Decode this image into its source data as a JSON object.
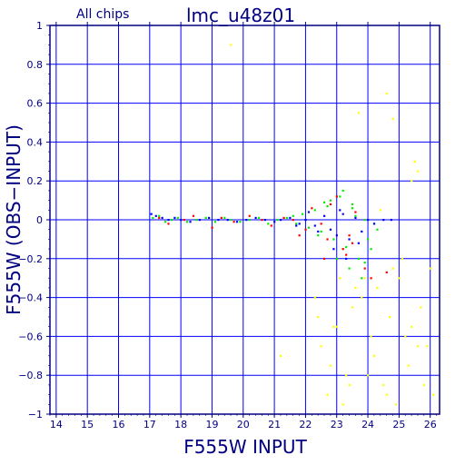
{
  "chart_data": {
    "type": "scatter",
    "title": "lmc_u48z01",
    "subtitle": "All chips",
    "xlabel": "F555W INPUT",
    "ylabel": "F555W (OBS−INPUT)",
    "xlim": [
      13.8,
      26.3
    ],
    "ylim": [
      -1,
      1
    ],
    "xticks": [
      "14",
      "15",
      "16",
      "17",
      "18",
      "19",
      "20",
      "21",
      "22",
      "23",
      "24",
      "25",
      "26"
    ],
    "yticks": [
      "1",
      "0.8",
      "0.6",
      "0.4",
      "0.2",
      "0",
      "−0.2",
      "−0.4",
      "−0.6",
      "−0.8",
      "−1"
    ],
    "grid": true,
    "colors": {
      "axes": "#000080",
      "grid": "#0000ff",
      "series": [
        "#0000ff",
        "#ff0000",
        "#00ee00",
        "#ffff00"
      ]
    },
    "series": [
      {
        "color": "#0000ff",
        "x": [
          17.05,
          17.2,
          17.4,
          17.6,
          17.8,
          18.0,
          18.3,
          18.6,
          18.9,
          19.2,
          19.5,
          19.8,
          20.1,
          20.4,
          20.7,
          21.0,
          21.2,
          21.5,
          21.8,
          22.0,
          22.3,
          22.6,
          22.8,
          23.0,
          23.2,
          23.4,
          23.6,
          23.8,
          24.0,
          24.2,
          24.5,
          24.75,
          22.9,
          23.3,
          23.7,
          21.7,
          22.1,
          22.4,
          23.1
        ],
        "y": [
          0.03,
          0.02,
          0.01,
          0.0,
          0.01,
          0.0,
          -0.01,
          0.0,
          0.01,
          0.0,
          0.0,
          -0.01,
          0.0,
          0.01,
          0.0,
          -0.01,
          0.0,
          0.01,
          -0.02,
          0.0,
          -0.03,
          0.02,
          -0.05,
          -0.08,
          0.03,
          -0.1,
          0.01,
          -0.06,
          0.0,
          -0.02,
          0.0,
          0.0,
          -0.15,
          -0.2,
          -0.12,
          -0.03,
          0.04,
          -0.06,
          0.05
        ]
      },
      {
        "color": "#ff0000",
        "x": [
          17.3,
          17.6,
          18.1,
          18.4,
          19.0,
          19.3,
          19.7,
          20.2,
          20.6,
          20.9,
          21.3,
          21.6,
          22.0,
          22.2,
          22.5,
          22.7,
          23.0,
          23.2,
          23.4,
          23.6,
          23.9,
          24.1,
          24.6,
          22.8,
          23.3,
          23.5,
          21.8,
          22.6
        ],
        "y": [
          0.01,
          -0.02,
          0.0,
          0.02,
          -0.04,
          0.01,
          -0.01,
          0.02,
          0.0,
          -0.03,
          0.01,
          0.0,
          -0.05,
          0.06,
          -0.02,
          -0.1,
          0.12,
          -0.15,
          -0.08,
          0.04,
          -0.25,
          -0.3,
          -0.27,
          0.08,
          -0.18,
          -0.12,
          -0.08,
          -0.2
        ]
      },
      {
        "color": "#00ee00",
        "x": [
          17.1,
          17.3,
          17.5,
          17.7,
          17.9,
          18.2,
          18.5,
          18.8,
          19.1,
          19.4,
          19.6,
          19.9,
          20.2,
          20.5,
          20.8,
          21.1,
          21.4,
          21.7,
          21.9,
          22.1,
          22.3,
          22.5,
          22.7,
          22.9,
          23.1,
          23.3,
          23.5,
          23.7,
          23.9,
          24.1,
          24.3,
          22.8,
          23.0,
          23.2,
          23.4,
          23.6,
          23.8,
          24.0,
          22.4,
          22.6,
          21.6,
          23.5,
          23.9,
          24.2
        ],
        "y": [
          0.01,
          0.02,
          -0.01,
          0.0,
          0.01,
          -0.01,
          0.0,
          0.01,
          -0.01,
          0.01,
          0.0,
          -0.01,
          0.0,
          0.01,
          -0.02,
          0.0,
          0.01,
          -0.02,
          0.03,
          -0.04,
          0.05,
          -0.06,
          0.07,
          -0.1,
          0.12,
          -0.14,
          0.08,
          -0.2,
          0.0,
          -0.15,
          -0.05,
          0.1,
          -0.2,
          0.15,
          -0.25,
          0.02,
          -0.3,
          -0.1,
          -0.08,
          0.09,
          0.02,
          0.06,
          -0.22,
          -0.02
        ]
      },
      {
        "color": "#ffff00",
        "x": [
          19.6,
          21.2,
          22.3,
          22.5,
          22.7,
          22.9,
          23.1,
          23.3,
          23.5,
          23.7,
          23.9,
          24.1,
          24.3,
          24.5,
          24.7,
          24.9,
          25.1,
          25.3,
          25.5,
          25.7,
          25.9,
          26.1,
          22.4,
          22.8,
          23.2,
          23.6,
          24.0,
          24.4,
          24.8,
          25.2,
          25.6,
          26.0,
          23.0,
          23.4,
          23.8,
          24.2,
          24.6,
          25.0,
          25.4,
          25.8,
          24.6,
          24.8,
          25.4,
          25.6
        ],
        "y": [
          0.9,
          -0.7,
          -0.4,
          -0.65,
          -0.9,
          -0.55,
          -0.3,
          -0.8,
          -0.45,
          0.55,
          -0.3,
          -0.6,
          -0.35,
          -0.85,
          -0.5,
          -0.95,
          -0.2,
          -0.75,
          0.3,
          -0.45,
          -0.65,
          -0.9,
          -0.5,
          -0.75,
          -0.95,
          -0.35,
          -0.8,
          0.05,
          -0.25,
          -0.6,
          0.25,
          -0.25,
          -0.55,
          -0.85,
          -0.4,
          -0.7,
          -0.9,
          -0.3,
          -0.55,
          -0.85,
          0.65,
          0.52,
          0.2,
          -0.65
        ]
      }
    ]
  }
}
